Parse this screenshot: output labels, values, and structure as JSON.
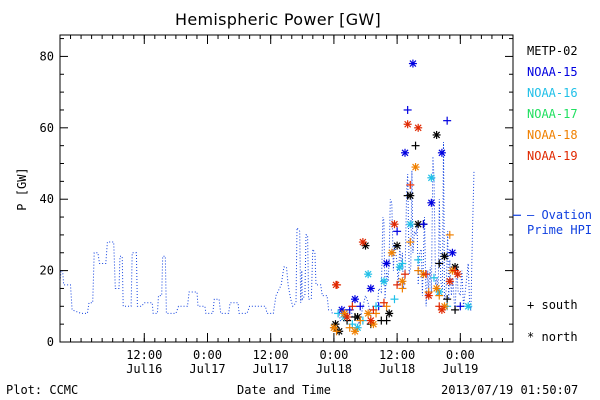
{
  "chart_data": {
    "type": "scatter",
    "title": "Hemispheric Power [GW]",
    "ylabel": "P [GW]",
    "xlabel": "Date and Time",
    "ylim": [
      0,
      86
    ],
    "y_ticks": [
      0,
      20,
      40,
      60,
      80
    ],
    "x_range_hours": [
      -28,
      58
    ],
    "x_ticks": [
      {
        "hours": -12,
        "line1": "12:00",
        "line2": "Jul16"
      },
      {
        "hours": 0,
        "line1": "0:00",
        "line2": "Jul17"
      },
      {
        "hours": 12,
        "line1": "12:00",
        "line2": "Jul17"
      },
      {
        "hours": 24,
        "line1": "0:00",
        "line2": "Jul18"
      },
      {
        "hours": 36,
        "line1": "12:00",
        "line2": "Jul18"
      },
      {
        "hours": 48,
        "line1": "0:00",
        "line2": "Jul19"
      }
    ],
    "series": [
      {
        "name": "METP-02",
        "color": "#000000",
        "south": [
          [
            24.2,
            4
          ],
          [
            26.5,
            6
          ],
          [
            28,
            7
          ],
          [
            31,
            5
          ],
          [
            33,
            6
          ],
          [
            34,
            6
          ],
          [
            38,
            41
          ],
          [
            39.5,
            55
          ],
          [
            41,
            33
          ],
          [
            44,
            22
          ],
          [
            45.5,
            12
          ],
          [
            47,
            9
          ]
        ],
        "north": [
          [
            24.3,
            5
          ],
          [
            25,
            3
          ],
          [
            28.5,
            7
          ],
          [
            30,
            27
          ],
          [
            34.5,
            8
          ],
          [
            36,
            27
          ],
          [
            38.5,
            41
          ],
          [
            40,
            33
          ],
          [
            43.5,
            58
          ],
          [
            45,
            24
          ],
          [
            47,
            21
          ]
        ]
      },
      {
        "name": "NOAA-15",
        "color": "#0000e0",
        "south": [
          [
            27,
            9
          ],
          [
            29,
            10
          ],
          [
            32.5,
            10
          ],
          [
            36,
            31
          ],
          [
            38,
            65
          ],
          [
            41,
            33
          ],
          [
            45.5,
            62
          ],
          [
            48,
            10
          ]
        ],
        "north": [
          [
            25.5,
            9
          ],
          [
            28,
            12
          ],
          [
            31,
            15
          ],
          [
            34,
            22
          ],
          [
            37.5,
            53
          ],
          [
            39,
            78
          ],
          [
            42.5,
            39
          ],
          [
            44.5,
            53
          ],
          [
            46.5,
            25
          ]
        ]
      },
      {
        "name": "NOAA-16",
        "color": "#20c0e8",
        "south": [
          [
            24.8,
            8
          ],
          [
            27.5,
            5
          ],
          [
            29.5,
            6
          ],
          [
            32,
            10
          ],
          [
            35.5,
            12
          ],
          [
            37,
            22
          ],
          [
            40,
            23
          ],
          [
            43,
            18
          ],
          [
            45.5,
            10
          ]
        ],
        "north": [
          [
            26,
            7
          ],
          [
            28.5,
            4
          ],
          [
            30.5,
            19
          ],
          [
            33.5,
            17
          ],
          [
            36.5,
            21
          ],
          [
            38.5,
            33
          ],
          [
            42.5,
            46
          ],
          [
            44,
            14
          ],
          [
            49.5,
            10
          ]
        ]
      },
      {
        "name": "NOAA-17",
        "color": "#20e060",
        "south": [],
        "north": []
      },
      {
        "name": "NOAA-18",
        "color": "#f08000",
        "south": [
          [
            24.5,
            3
          ],
          [
            27,
            4
          ],
          [
            29,
            6
          ],
          [
            32,
            8
          ],
          [
            34,
            10
          ],
          [
            37,
            15
          ],
          [
            38.5,
            28
          ],
          [
            40,
            20
          ],
          [
            42,
            14
          ],
          [
            44,
            13
          ],
          [
            46,
            30
          ]
        ],
        "north": [
          [
            24,
            4
          ],
          [
            26,
            8
          ],
          [
            28,
            3
          ],
          [
            30.5,
            8
          ],
          [
            31.5,
            5
          ],
          [
            35,
            25
          ],
          [
            37,
            17
          ],
          [
            39.5,
            49
          ],
          [
            41,
            19
          ],
          [
            43.5,
            15
          ],
          [
            45,
            10
          ],
          [
            46.5,
            20
          ]
        ]
      },
      {
        "name": "NOAA-19",
        "color": "#e02800",
        "south": [
          [
            24.6,
            16
          ],
          [
            27.5,
            10
          ],
          [
            31.5,
            9
          ],
          [
            33.5,
            11
          ],
          [
            36,
            16
          ],
          [
            37.5,
            19
          ],
          [
            38.5,
            44
          ],
          [
            41.5,
            19
          ],
          [
            44,
            10
          ],
          [
            47,
            20
          ]
        ],
        "north": [
          [
            24.4,
            16
          ],
          [
            26.5,
            7
          ],
          [
            29.5,
            28
          ],
          [
            31,
            6
          ],
          [
            35.5,
            33
          ],
          [
            38,
            61
          ],
          [
            40,
            60
          ],
          [
            42,
            13
          ],
          [
            44.5,
            9
          ],
          [
            46,
            17
          ],
          [
            47.5,
            19
          ]
        ]
      }
    ],
    "ovation": {
      "name": "Ovation Prime HPI",
      "color": "#1040e0",
      "points": [
        [
          -28,
          17
        ],
        [
          -27.8,
          20
        ],
        [
          -27.5,
          20
        ],
        [
          -27.3,
          16
        ],
        [
          -26,
          16
        ],
        [
          -25.7,
          9
        ],
        [
          -24,
          8
        ],
        [
          -22.8,
          8
        ],
        [
          -22.5,
          11
        ],
        [
          -21.8,
          11
        ],
        [
          -21.5,
          25
        ],
        [
          -20.8,
          25
        ],
        [
          -20.5,
          22
        ],
        [
          -19.3,
          22
        ],
        [
          -19,
          28
        ],
        [
          -17.8,
          28
        ],
        [
          -17.5,
          15
        ],
        [
          -16.8,
          15
        ],
        [
          -16.6,
          24
        ],
        [
          -16.2,
          24
        ],
        [
          -16,
          10
        ],
        [
          -14.5,
          10
        ],
        [
          -14.3,
          25
        ],
        [
          -13.5,
          25
        ],
        [
          -13.3,
          10
        ],
        [
          -12.5,
          10
        ],
        [
          -12,
          11
        ],
        [
          -10.5,
          11
        ],
        [
          -10.3,
          8
        ],
        [
          -9.5,
          8
        ],
        [
          -9.3,
          13
        ],
        [
          -8.7,
          13
        ],
        [
          -8.5,
          24
        ],
        [
          -8,
          24
        ],
        [
          -7.8,
          8
        ],
        [
          -6,
          8
        ],
        [
          -5.5,
          10
        ],
        [
          -3.8,
          10
        ],
        [
          -3.5,
          14
        ],
        [
          -2,
          14
        ],
        [
          -1.8,
          10
        ],
        [
          -0.5,
          10
        ],
        [
          -0.3,
          8
        ],
        [
          1,
          8
        ],
        [
          1.3,
          12
        ],
        [
          2.2,
          12
        ],
        [
          2.5,
          8
        ],
        [
          4,
          8
        ],
        [
          4.3,
          11
        ],
        [
          5.8,
          11
        ],
        [
          6,
          8
        ],
        [
          7.5,
          8
        ],
        [
          8,
          10
        ],
        [
          11,
          10
        ],
        [
          11.3,
          8
        ],
        [
          12.5,
          8
        ],
        [
          13,
          13
        ],
        [
          14,
          16
        ],
        [
          14.5,
          21
        ],
        [
          15,
          21
        ],
        [
          15.3,
          16
        ],
        [
          15.8,
          12
        ],
        [
          16.2,
          10
        ],
        [
          16.8,
          11
        ],
        [
          17,
          32
        ],
        [
          17.5,
          31
        ],
        [
          17.7,
          11
        ],
        [
          17.9,
          20
        ],
        [
          18,
          12
        ],
        [
          18.5,
          13
        ],
        [
          18.7,
          30
        ],
        [
          19,
          30
        ],
        [
          19.2,
          12
        ],
        [
          19.7,
          12
        ],
        [
          20,
          26
        ],
        [
          20.4,
          25
        ],
        [
          20.6,
          16
        ],
        [
          21.5,
          16
        ],
        [
          21.8,
          13
        ],
        [
          22.7,
          13
        ],
        [
          23,
          9
        ],
        [
          23.5,
          9
        ],
        [
          23.7,
          8
        ],
        [
          25,
          8
        ],
        [
          25.2,
          6
        ],
        [
          26.5,
          6
        ],
        [
          26.7,
          9
        ],
        [
          27.3,
          9
        ],
        [
          27.5,
          7
        ],
        [
          28.5,
          7
        ],
        [
          28.7,
          5
        ],
        [
          29,
          6
        ],
        [
          29.5,
          10
        ],
        [
          30,
          13
        ],
        [
          30.5,
          11
        ],
        [
          31,
          7
        ],
        [
          31.5,
          10
        ],
        [
          32.3,
          10
        ],
        [
          32.5,
          15
        ],
        [
          33,
          14
        ],
        [
          33.3,
          35
        ],
        [
          33.5,
          34
        ],
        [
          33.7,
          12
        ],
        [
          34,
          20
        ],
        [
          34.3,
          17
        ],
        [
          34.5,
          24
        ],
        [
          34.7,
          40
        ],
        [
          35,
          39
        ],
        [
          35.3,
          20
        ],
        [
          35.5,
          28
        ],
        [
          36,
          22
        ],
        [
          36.2,
          16
        ],
        [
          36.5,
          27
        ],
        [
          36.8,
          21
        ],
        [
          37,
          25
        ],
        [
          37.2,
          15
        ],
        [
          37.5,
          18
        ],
        [
          37.8,
          42
        ],
        [
          38,
          47
        ],
        [
          38.3,
          19
        ],
        [
          38.6,
          21
        ],
        [
          38.8,
          48
        ],
        [
          39,
          25
        ],
        [
          39.3,
          31
        ],
        [
          39.6,
          30
        ],
        [
          39.8,
          33
        ],
        [
          40,
          16
        ],
        [
          40.3,
          25
        ],
        [
          40.6,
          26
        ],
        [
          40.8,
          13
        ],
        [
          41.2,
          35
        ],
        [
          41.5,
          10
        ],
        [
          41.8,
          20
        ],
        [
          42,
          15
        ],
        [
          42.3,
          21
        ],
        [
          42.5,
          14
        ],
        [
          42.8,
          52
        ],
        [
          43,
          46
        ],
        [
          43.3,
          16
        ],
        [
          43.6,
          18
        ],
        [
          43.8,
          13
        ],
        [
          44,
          40
        ],
        [
          44.3,
          17
        ],
        [
          44.6,
          14
        ],
        [
          44.8,
          56
        ],
        [
          45,
          12
        ],
        [
          45.3,
          14
        ],
        [
          45.6,
          31
        ],
        [
          45.8,
          12
        ],
        [
          46,
          23
        ],
        [
          46.3,
          13
        ],
        [
          46.6,
          18
        ],
        [
          46.8,
          12
        ],
        [
          47,
          8
        ],
        [
          47.3,
          21
        ],
        [
          47.6,
          14
        ],
        [
          48,
          13
        ],
        [
          48.3,
          20
        ],
        [
          48.6,
          10
        ],
        [
          49,
          15
        ],
        [
          49.5,
          22
        ],
        [
          49.8,
          9
        ],
        [
          50,
          9
        ],
        [
          50.3,
          30
        ],
        [
          50.6,
          48
        ]
      ]
    }
  },
  "labels": {
    "ovation_line1": "– Ovation",
    "ovation_line2": "Prime HPI",
    "south_marker": "+",
    "south_label": "south",
    "north_marker": "*",
    "north_label": "north",
    "plot_credit": "Plot: CCMC",
    "timestamp": "2013/07/19 01:50:07"
  }
}
